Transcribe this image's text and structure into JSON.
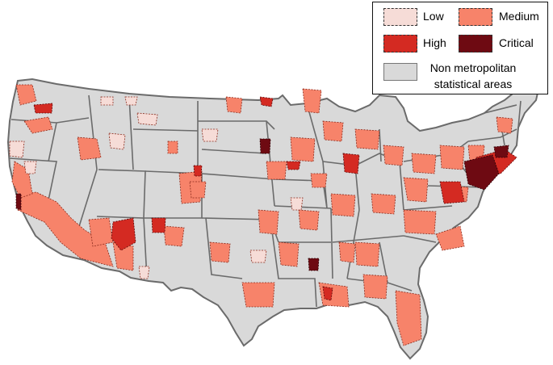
{
  "legend": {
    "low": "Low",
    "medium": "Medium",
    "high": "High",
    "critical": "Critical",
    "non_metro_line1": "Non metropolitan",
    "non_metro_line2": "statistical areas"
  },
  "colors": {
    "low": "#f6dcd7",
    "medium": "#f7836a",
    "high": "#d42a22",
    "critical": "#6e0a12",
    "non_metro": "#d9d9d9",
    "borders": "#6b6b6b"
  }
}
